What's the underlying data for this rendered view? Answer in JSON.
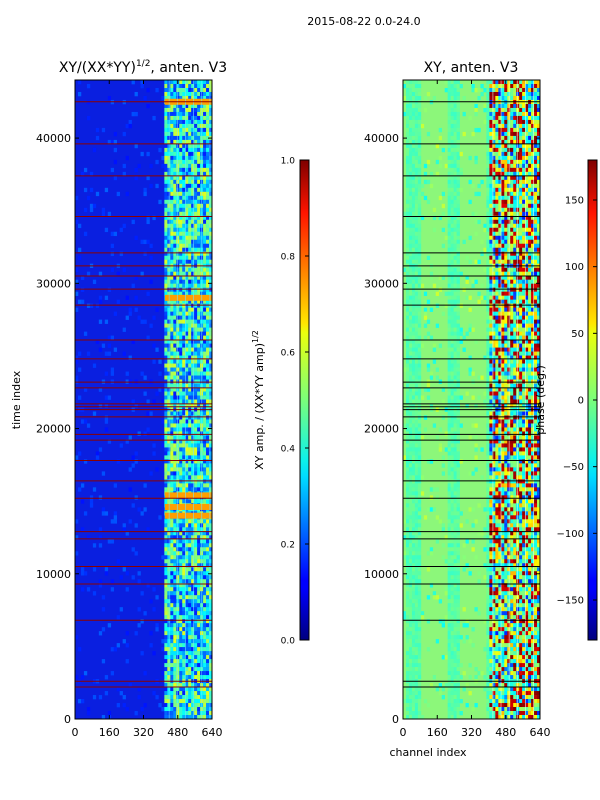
{
  "figure": {
    "suptitle": "2015-08-22 0.0-24.0"
  },
  "chart_data": [
    {
      "type": "heatmap",
      "title": "XY/(XX*YY)",
      "title_exponent": "1/2",
      "title_suffix": ", anten. V3",
      "xlabel": "",
      "ylabel": "time index",
      "xlim": [
        0,
        640
      ],
      "ylim": [
        0,
        44000
      ],
      "xticks": [
        0,
        160,
        320,
        480,
        640
      ],
      "yticks": [
        0,
        10000,
        20000,
        30000,
        40000
      ],
      "colormap": "jet",
      "background_value": 0.08,
      "active_band": [
        420,
        640
      ],
      "bright_rows": [
        14000,
        14600,
        15400,
        29000,
        42500
      ],
      "flag_lines": [
        2200,
        2600,
        6800,
        9300,
        10500,
        12400,
        12900,
        15200,
        16400,
        17800,
        19200,
        19600,
        20800,
        21300,
        21500,
        21700,
        22800,
        23200,
        24800,
        26100,
        28500,
        29600,
        30500,
        31200,
        32100,
        34600,
        37400,
        39600,
        42500
      ],
      "colorbar": {
        "label": "XY amp. / (XX*YY amp)",
        "label_exponent": "1/2",
        "range": [
          0.0,
          1.0
        ],
        "ticks": [
          "0.0",
          "0.2",
          "0.4",
          "0.6",
          "0.8",
          "1.0"
        ]
      }
    },
    {
      "type": "heatmap",
      "title": "XY, anten. V3",
      "xlabel": "channel index",
      "ylabel": "",
      "xlim": [
        0,
        640
      ],
      "ylim": [
        0,
        44000
      ],
      "xticks": [
        0,
        160,
        320,
        480,
        640
      ],
      "yticks": [
        0,
        10000,
        20000,
        30000,
        40000
      ],
      "colormap": "jet",
      "background_value": 0,
      "active_band": [
        400,
        640
      ],
      "flag_lines": [
        2200,
        2600,
        6800,
        9300,
        10500,
        12400,
        12900,
        15200,
        16400,
        17800,
        19200,
        19600,
        20800,
        21300,
        21500,
        21700,
        22800,
        23200,
        24800,
        26100,
        28500,
        29600,
        30500,
        31200,
        32100,
        34600,
        37400,
        39600,
        42500
      ],
      "colorbar": {
        "label": "phase (deg.)",
        "range": [
          -180,
          180
        ],
        "ticks": [
          "-150",
          "-100",
          "-50",
          "0",
          "50",
          "100",
          "150"
        ]
      }
    }
  ]
}
